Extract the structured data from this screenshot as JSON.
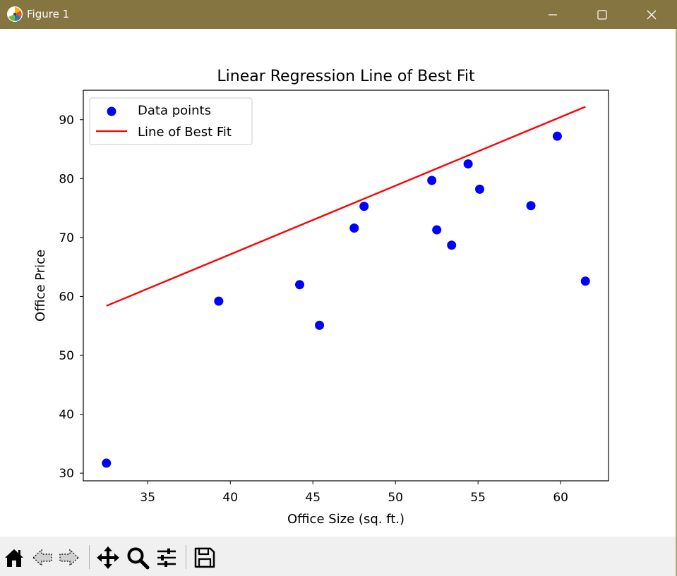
{
  "window": {
    "title": "Figure 1",
    "titlebar_color": "#857541",
    "controls": [
      "minimize-icon",
      "maximize-icon",
      "close-icon"
    ]
  },
  "toolbar": {
    "buttons": [
      "home-icon",
      "back-arrow-icon",
      "forward-arrow-icon",
      "pan-move-icon",
      "zoom-magnifier-icon",
      "configure-subplots-icon",
      "save-disk-icon"
    ]
  },
  "chart_data": {
    "type": "scatter",
    "title": "Linear Regression Line of Best Fit",
    "xlabel": "Office Size (sq. ft.)",
    "ylabel": "Office Price",
    "xlim": [
      31.1,
      62.9
    ],
    "ylim": [
      28.7,
      95.0
    ],
    "xticks": [
      35,
      40,
      45,
      50,
      55,
      60
    ],
    "yticks": [
      30,
      40,
      50,
      60,
      70,
      80,
      90
    ],
    "grid": false,
    "legend": {
      "placement": "upper-left",
      "entries": [
        "Data points",
        "Line of Best Fit"
      ]
    },
    "series": [
      {
        "name": "Data points",
        "kind": "scatter",
        "color": "#0000ff",
        "points": [
          [
            32.5,
            31.7
          ],
          [
            39.3,
            59.2
          ],
          [
            44.2,
            62.0
          ],
          [
            45.4,
            55.1
          ],
          [
            47.5,
            71.6
          ],
          [
            48.1,
            75.3
          ],
          [
            52.2,
            79.7
          ],
          [
            52.5,
            71.3
          ],
          [
            53.4,
            68.7
          ],
          [
            54.4,
            82.5
          ],
          [
            55.1,
            78.2
          ],
          [
            58.2,
            75.4
          ],
          [
            59.8,
            87.2
          ],
          [
            61.5,
            62.6
          ]
        ]
      },
      {
        "name": "Line of Best Fit",
        "kind": "line",
        "color": "#ff0000",
        "points": [
          [
            32.5,
            58.4
          ],
          [
            61.5,
            92.2
          ]
        ]
      }
    ]
  }
}
